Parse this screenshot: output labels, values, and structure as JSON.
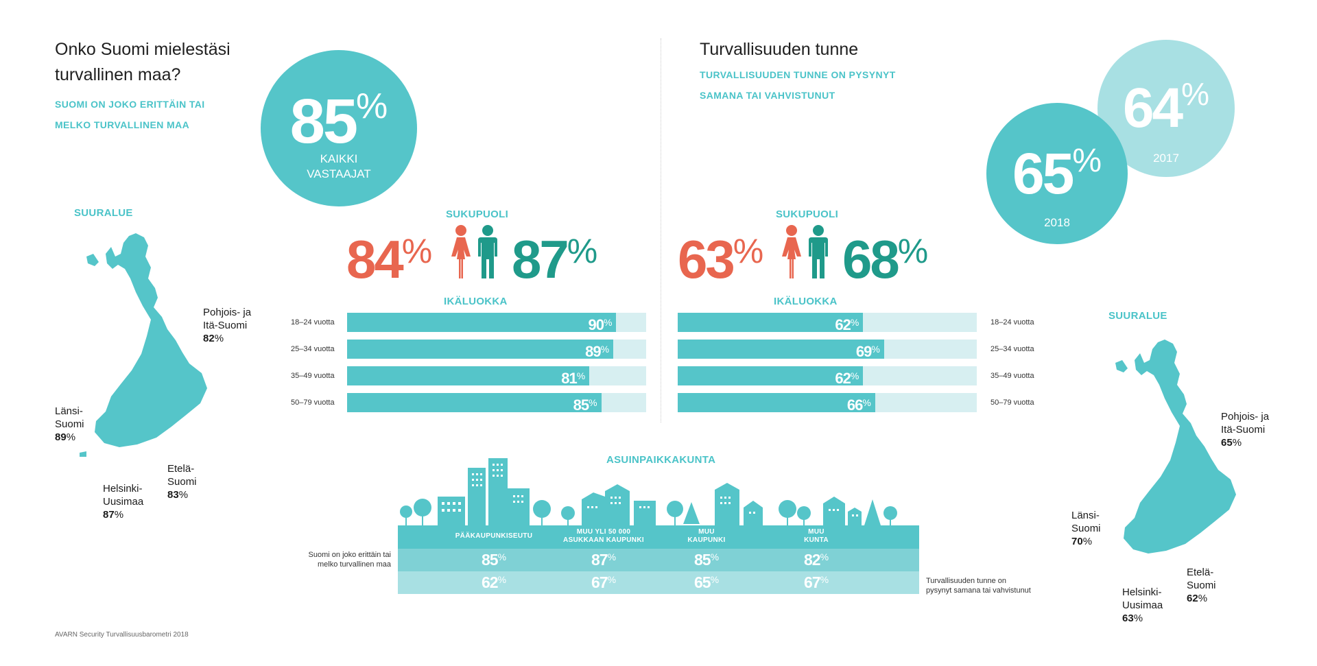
{
  "left": {
    "title_line1": "Onko Suomi mielestäsi",
    "title_line2": "turvallinen maa?",
    "subtitle_line1": "SUOMI ON JOKO ERITTÄIN TAI",
    "subtitle_line2": "MELKO TURVALLINEN MAA",
    "circle": {
      "value": "85",
      "pct": "%",
      "caption_line1": "KAIKKI",
      "caption_line2": "VASTAAJAT"
    },
    "gender_label": "SUKUPUOLI",
    "female": {
      "value": "84",
      "pct": "%"
    },
    "male": {
      "value": "87",
      "pct": "%"
    },
    "age_label": "IKÄLUOKKA",
    "region_label": "SUURALUE",
    "regions": {
      "north": {
        "name_line1": "Pohjois- ja",
        "name_line2": "Itä-Suomi",
        "value": "82",
        "pct": "%"
      },
      "west": {
        "name_line1": "Länsi-",
        "name_line2": "Suomi",
        "value": "89",
        "pct": "%"
      },
      "south": {
        "name_line1": "Etelä-",
        "name_line2": "Suomi",
        "value": "83",
        "pct": "%"
      },
      "helsinki": {
        "name_line1": "Helsinki-",
        "name_line2": "Uusimaa",
        "value": "87",
        "pct": "%"
      }
    }
  },
  "right": {
    "title": "Turvallisuuden tunne",
    "subtitle_line1": "TURVALLISUUDEN TUNNE ON PYSYNYT",
    "subtitle_line2": "SAMANA TAI VAHVISTUNUT",
    "circle_2017": {
      "value": "64",
      "pct": "%",
      "caption": "2017"
    },
    "circle_2018": {
      "value": "65",
      "pct": "%",
      "caption": "2018"
    },
    "gender_label": "SUKUPUOLI",
    "female": {
      "value": "63",
      "pct": "%"
    },
    "male": {
      "value": "68",
      "pct": "%"
    },
    "age_label": "IKÄLUOKKA",
    "region_label": "SUURALUE",
    "regions": {
      "north": {
        "name_line1": "Pohjois- ja",
        "name_line2": "Itä-Suomi",
        "value": "65",
        "pct": "%"
      },
      "west": {
        "name_line1": "Länsi-",
        "name_line2": "Suomi",
        "value": "70",
        "pct": "%"
      },
      "south": {
        "name_line1": "Etelä-",
        "name_line2": "Suomi",
        "value": "62",
        "pct": "%"
      },
      "helsinki": {
        "name_line1": "Helsinki-",
        "name_line2": "Uusimaa",
        "value": "63",
        "pct": "%"
      }
    }
  },
  "residence": {
    "title": "ASUINPAIKKAKUNTA",
    "headers": [
      {
        "line1": "PÄÄKAUPUNKISEUTU",
        "line2": ""
      },
      {
        "line1": "MUU YLI 50 000",
        "line2": "ASUKKAAN KAUPUNKI"
      },
      {
        "line1": "MUU",
        "line2": "KAUPUNKI"
      },
      {
        "line1": "MUU",
        "line2": "KUNTA"
      }
    ],
    "row1_label_line1": "Suomi on joko erittäin tai",
    "row1_label_line2": "melko turvallinen maa",
    "row2_label_line1": "Turvallisuuden tunne on",
    "row2_label_line2": "pysynyt samana tai vahvistunut"
  },
  "footer": "AVARN Security Turvallisuusbarometri 2018",
  "colors": {
    "teal": "#55c5c9",
    "light_teal": "#a8e0e3",
    "female": "#e8664f",
    "male": "#1f9a8a",
    "accent": "#4ac3c8"
  },
  "chart_data": [
    {
      "type": "bar",
      "orientation": "horizontal",
      "title": "IKÄLUOKKA",
      "categories": [
        "18–24 vuotta",
        "25–34 vuotta",
        "35–49 vuotta",
        "50–79 vuotta"
      ],
      "values": [
        90,
        89,
        81,
        85
      ],
      "unit": "%",
      "ylim": [
        0,
        100
      ]
    },
    {
      "type": "bar",
      "orientation": "horizontal",
      "title": "IKÄLUOKKA",
      "categories": [
        "18–24 vuotta",
        "25–34 vuotta",
        "35–49 vuotta",
        "50–79 vuotta"
      ],
      "values": [
        62,
        69,
        62,
        66
      ],
      "unit": "%",
      "ylim": [
        0,
        100
      ]
    },
    {
      "type": "table",
      "title": "ASUINPAIKKAKUNTA",
      "categories": [
        "PÄÄKAUPUNKISEUTU",
        "MUU YLI 50 000 ASUKKAAN KAUPUNKI",
        "MUU KAUPUNKI",
        "MUU KUNTA"
      ],
      "series": [
        {
          "name": "Suomi on joko erittäin tai melko turvallinen maa",
          "values": [
            85,
            87,
            85,
            82
          ]
        },
        {
          "name": "Turvallisuuden tunne on pysynyt samana tai vahvistunut",
          "values": [
            62,
            67,
            65,
            67
          ]
        }
      ],
      "unit": "%"
    }
  ]
}
